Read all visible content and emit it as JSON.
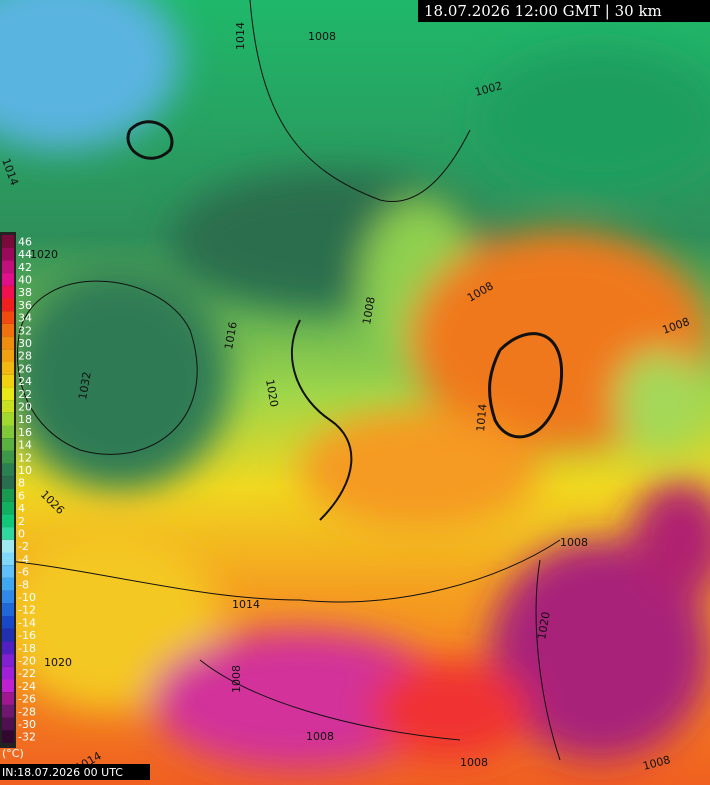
{
  "header": {
    "title": "18.07.2026 12:00 GMT | 30 km"
  },
  "footer": {
    "init": "IN:18.07.2026 00 UTC"
  },
  "legend": {
    "unit": "(°C)",
    "labels": [
      46,
      44,
      42,
      40,
      38,
      36,
      34,
      32,
      30,
      28,
      26,
      24,
      22,
      20,
      18,
      16,
      14,
      12,
      10,
      8,
      6,
      4,
      2,
      0,
      -2,
      -4,
      -6,
      -8,
      -10,
      -12,
      -14,
      -16,
      -18,
      -20,
      -22,
      -24,
      -26,
      -28,
      -30,
      -32
    ]
  },
  "isobars": [
    {
      "label": "1014"
    },
    {
      "label": "1008"
    },
    {
      "label": "1002"
    },
    {
      "label": "1014"
    },
    {
      "label": "1020"
    },
    {
      "label": "1032"
    },
    {
      "label": "1026"
    },
    {
      "label": "1016"
    },
    {
      "label": "1020"
    },
    {
      "label": "1008"
    },
    {
      "label": "1008"
    },
    {
      "label": "1008"
    },
    {
      "label": "1014"
    },
    {
      "label": "1008"
    },
    {
      "label": "1014"
    },
    {
      "label": "1020"
    },
    {
      "label": "1008"
    },
    {
      "label": "1020"
    },
    {
      "label": "1008"
    },
    {
      "label": "1008"
    },
    {
      "label": "1008"
    },
    {
      "label": "1014"
    }
  ]
}
